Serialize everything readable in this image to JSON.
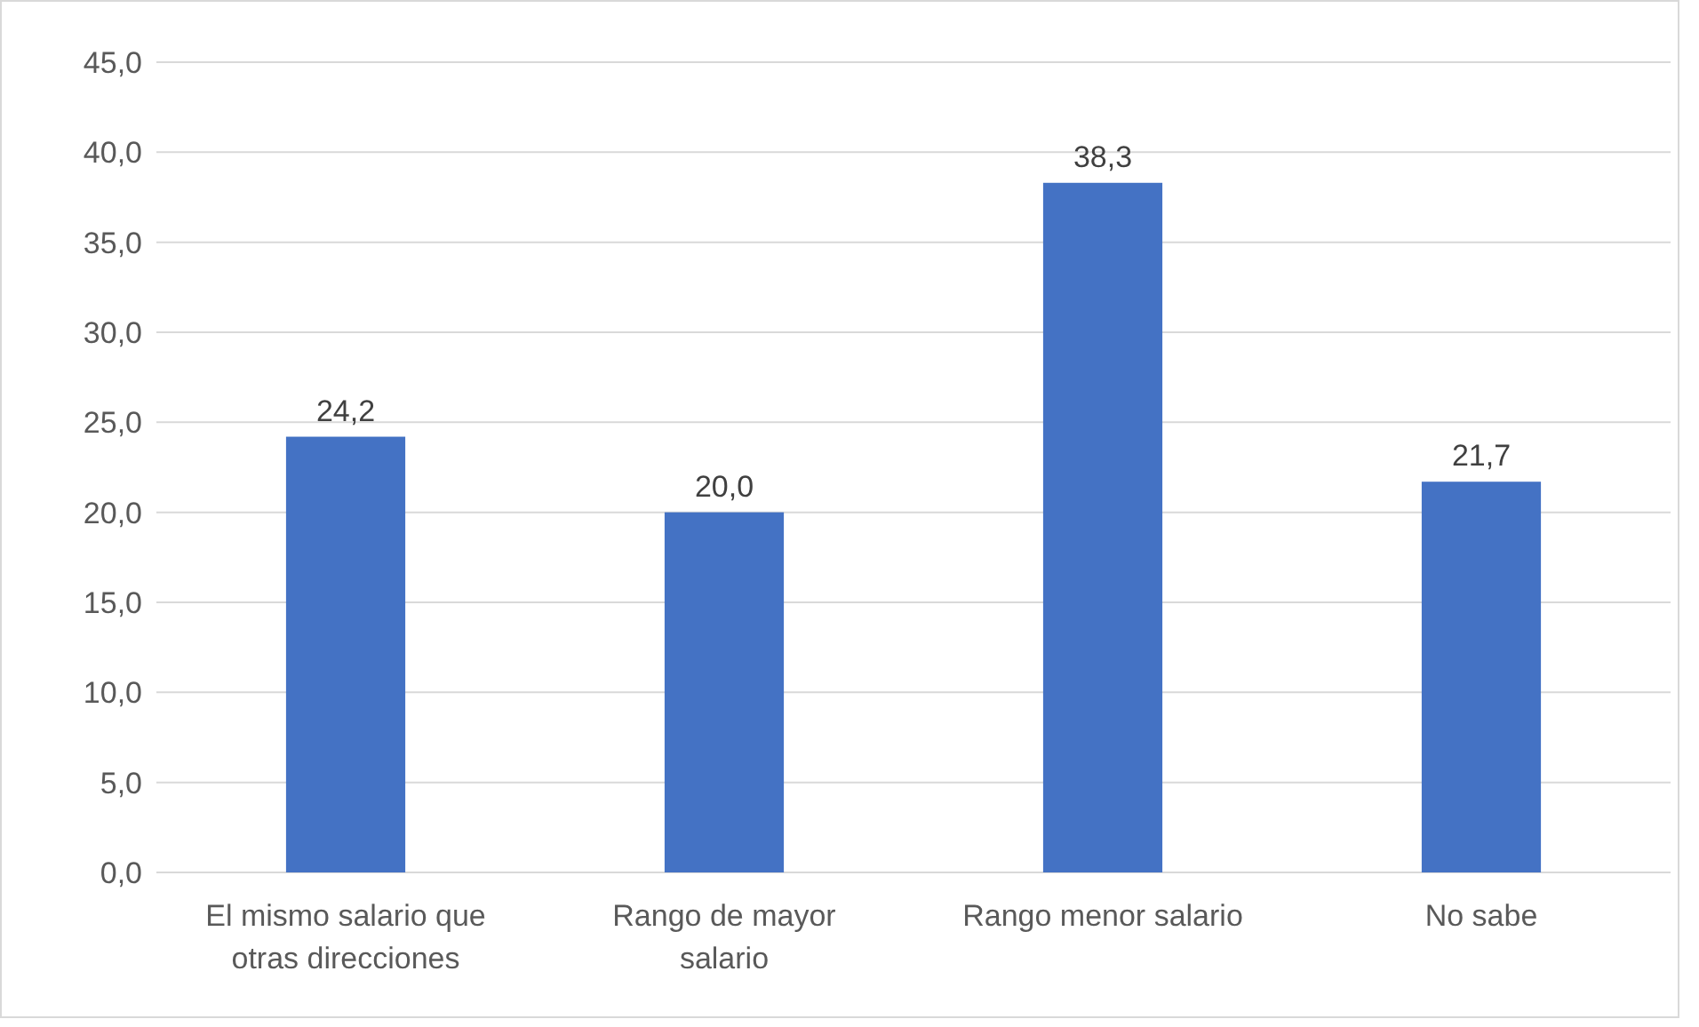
{
  "chart_data": {
    "type": "bar",
    "categories": [
      "El mismo salario que otras direcciones",
      "Rango de mayor salario",
      "Rango menor salario",
      "No sabe"
    ],
    "values": [
      24.2,
      20.0,
      38.3,
      21.7
    ],
    "value_labels": [
      "24,2",
      "20,0",
      "38,3",
      "21,7"
    ],
    "color": "#4472c4",
    "ylim": [
      0,
      45
    ],
    "yticks": [
      {
        "value": 0,
        "label": "0,0"
      },
      {
        "value": 5,
        "label": "5,0"
      },
      {
        "value": 10,
        "label": "10,0"
      },
      {
        "value": 15,
        "label": "15,0"
      },
      {
        "value": 20,
        "label": "20,0"
      },
      {
        "value": 25,
        "label": "25,0"
      },
      {
        "value": 30,
        "label": "30,0"
      },
      {
        "value": 35,
        "label": "35,0"
      },
      {
        "value": 40,
        "label": "40,0"
      },
      {
        "value": 45,
        "label": "45,0"
      }
    ],
    "grid": "y"
  }
}
